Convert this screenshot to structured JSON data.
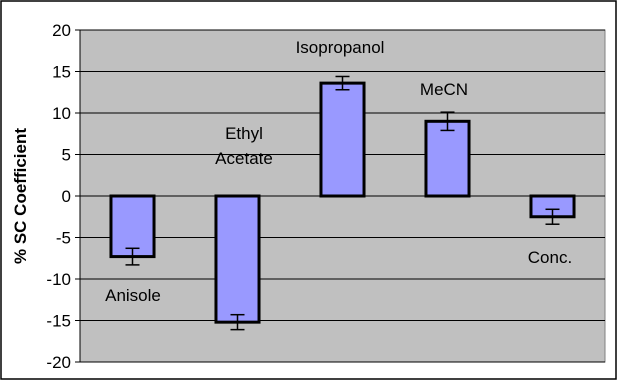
{
  "chart_data": {
    "type": "bar",
    "title": "",
    "xlabel": "",
    "ylabel": "% SC Coefficient",
    "ylim": [
      -20,
      20
    ],
    "yticks": [
      20,
      15,
      10,
      5,
      0,
      -5,
      -10,
      -15,
      -20
    ],
    "grid": true,
    "legend": "none",
    "categories": [
      "Anisole",
      "Ethyl Acetate",
      "Isopropanol",
      "MeCN",
      "Conc."
    ],
    "label_lines": [
      [
        "Anisole"
      ],
      [
        "Ethyl",
        "Acetate"
      ],
      [
        "Isopropanol"
      ],
      [
        "MeCN"
      ],
      [
        "Conc."
      ]
    ],
    "values": [
      -7.3,
      -15.2,
      13.6,
      9.0,
      -2.5
    ],
    "error": [
      1.0,
      0.9,
      0.8,
      1.1,
      0.9
    ],
    "colors": {
      "bar_fill": "#9999ff",
      "bar_border": "#000000",
      "plot_area": "#c0c0c0",
      "gridline": "#000000"
    }
  }
}
